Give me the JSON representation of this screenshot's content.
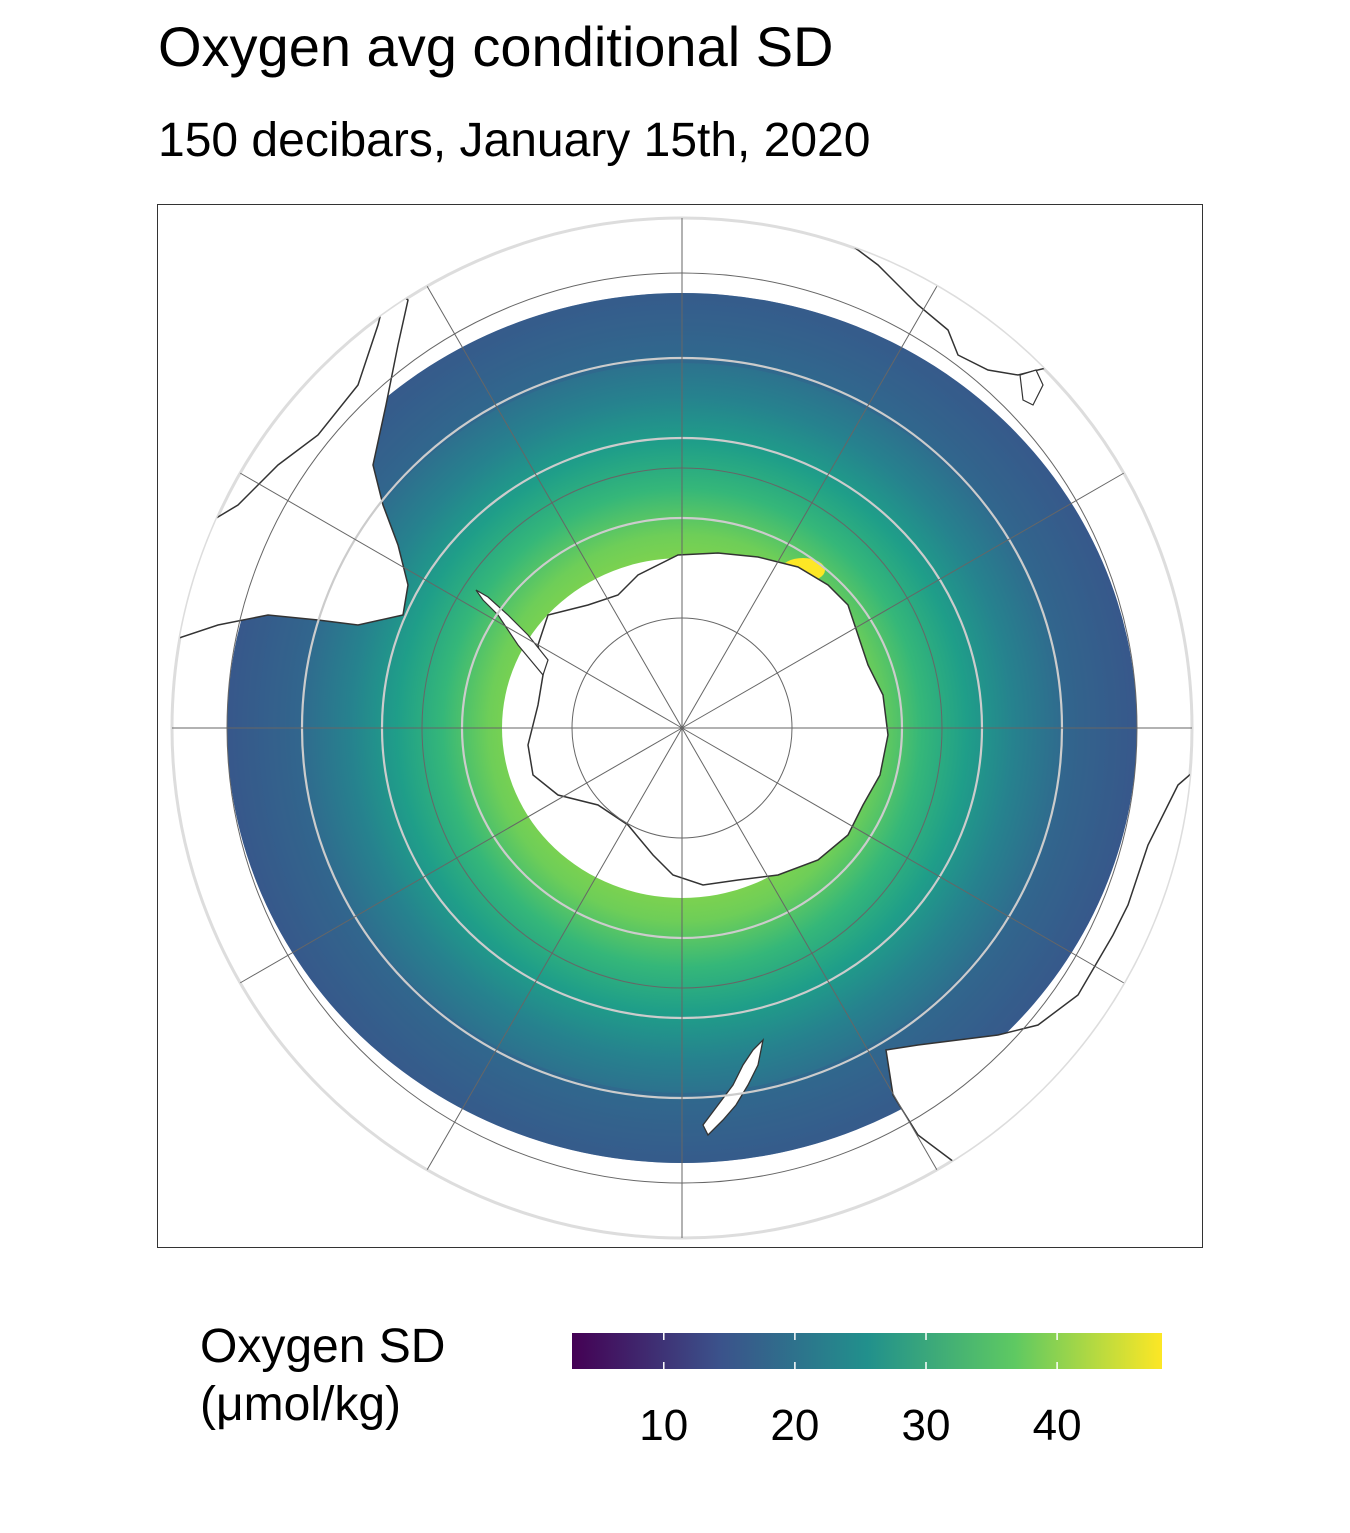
{
  "title": "Oxygen avg conditional SD",
  "subtitle": "150 decibars, January 15th, 2020",
  "legend": {
    "title_line1": "Oxygen SD",
    "title_line2": "(μmol/kg)",
    "ticks": [
      "10",
      "20",
      "30",
      "40"
    ],
    "tick_values": [
      10,
      20,
      30,
      40
    ],
    "range": [
      3,
      48
    ],
    "colormap": "viridis",
    "colors": [
      "#440154",
      "#3b528b",
      "#21908c",
      "#5ec962",
      "#fde725"
    ]
  },
  "map": {
    "projection": "south polar stereographic",
    "region": "Southern Ocean",
    "variable": "Oxygen avg conditional SD",
    "pressure": "150 decibars",
    "date": "January 15th, 2020",
    "colors": {
      "land": "#ffffff",
      "coastline": "#333333",
      "graticule": "#666666",
      "boundary": "#dddddd",
      "fronts": "#cccccc"
    }
  }
}
